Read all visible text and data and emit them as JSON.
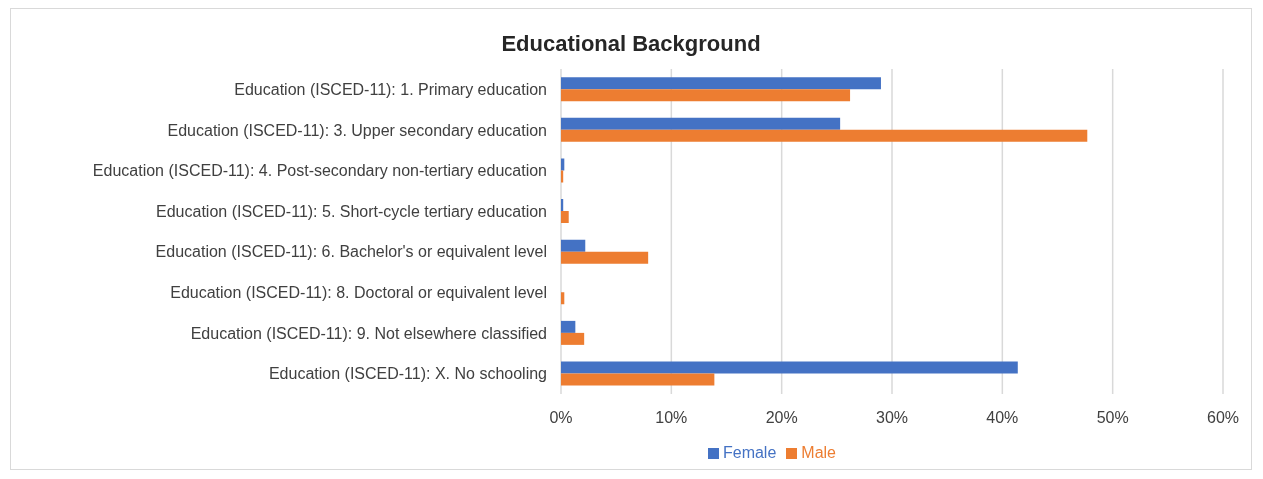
{
  "chart_data": {
    "type": "bar",
    "orientation": "horizontal",
    "title": "Educational Background",
    "categories": [
      "Education (ISCED-11): 1. Primary education",
      "Education (ISCED-11): 3. Upper secondary education",
      "Education (ISCED-11): 4. Post-secondary non-tertiary education",
      "Education (ISCED-11): 5. Short-cycle tertiary education",
      "Education (ISCED-11): 6. Bachelor's or equivalent level",
      "Education (ISCED-11): 8. Doctoral or equivalent level",
      "Education (ISCED-11): 9. Not elsewhere classified",
      "Education (ISCED-11): X. No schooling"
    ],
    "series": [
      {
        "name": "Female",
        "color": "#4472c4",
        "values": [
          29.0,
          25.3,
          0.3,
          0.2,
          2.2,
          0,
          1.3,
          41.4
        ]
      },
      {
        "name": "Male",
        "color": "#ed7d31",
        "values": [
          26.2,
          47.7,
          0.2,
          0.7,
          7.9,
          0.3,
          2.1,
          13.9
        ]
      }
    ],
    "xlim": [
      0,
      60
    ],
    "xticks": [
      {
        "value": 0,
        "label": "0%"
      },
      {
        "value": 10,
        "label": "10%"
      },
      {
        "value": 20,
        "label": "20%"
      },
      {
        "value": 30,
        "label": "30%"
      },
      {
        "value": 40,
        "label": "40%"
      },
      {
        "value": 50,
        "label": "50%"
      },
      {
        "value": 60,
        "label": "60%"
      }
    ],
    "grid": "x",
    "legend": "bottom"
  }
}
